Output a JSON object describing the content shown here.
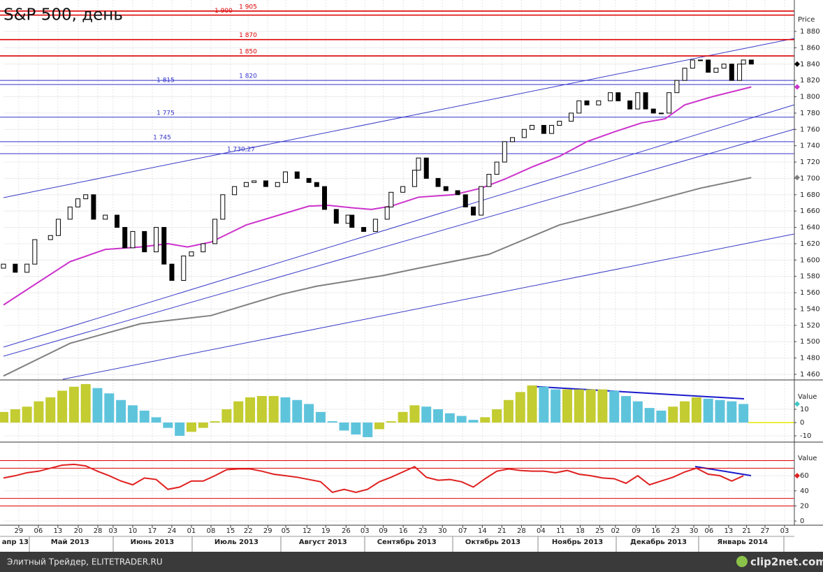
{
  "chart_data": [
    {
      "type": "candlestick",
      "title": "S&P 500, день",
      "y_axis_label": "Price",
      "xlim": [
        0,
        202
      ],
      "ylim": [
        1454,
        1918.5
      ],
      "grid": true,
      "x": [
        0,
        3,
        6,
        8,
        12,
        14,
        17,
        19,
        21,
        23,
        26,
        29,
        31,
        33,
        36,
        39,
        41,
        43,
        46,
        48,
        51,
        54,
        56,
        59,
        62,
        64,
        67,
        70,
        72,
        75,
        78,
        80,
        82,
        85,
        88,
        89,
        92,
        95,
        98,
        99,
        102,
        105,
        106,
        108,
        111,
        113,
        116,
        118,
        120,
        122,
        124,
        126,
        128,
        130,
        133,
        135,
        138,
        140,
        142,
        145,
        147,
        149,
        152,
        155,
        157,
        160,
        162,
        164,
        166,
        168,
        170,
        172,
        174,
        176,
        178,
        180,
        182,
        184,
        186,
        188,
        189,
        191
      ],
      "open": [
        1590,
        1595,
        1585,
        1595,
        1625,
        1630,
        1650,
        1665,
        1675,
        1680,
        1650,
        1655,
        1640,
        1615,
        1635,
        1610,
        1640,
        1595,
        1575,
        1605,
        1610,
        1620,
        1650,
        1680,
        1690,
        1695,
        1697,
        1690,
        1695,
        1708,
        1700,
        1695,
        1690,
        1662,
        1645,
        1655,
        1640,
        1635,
        1650,
        1665,
        1683,
        1690,
        1710,
        1725,
        1700,
        1690,
        1685,
        1680,
        1665,
        1655,
        1690,
        1705,
        1720,
        1745,
        1750,
        1760,
        1765,
        1755,
        1765,
        1770,
        1780,
        1795,
        1790,
        1795,
        1805,
        1795,
        1785,
        1805,
        1785,
        1780,
        1780,
        1805,
        1820,
        1835,
        1845,
        1845,
        1830,
        1835,
        1840,
        1820,
        1840,
        1845
      ],
      "close": [
        1595,
        1585,
        1595,
        1625,
        1630,
        1650,
        1665,
        1675,
        1680,
        1650,
        1655,
        1640,
        1615,
        1635,
        1610,
        1640,
        1595,
        1575,
        1605,
        1610,
        1620,
        1650,
        1680,
        1690,
        1695,
        1697,
        1690,
        1695,
        1708,
        1700,
        1695,
        1690,
        1662,
        1645,
        1655,
        1640,
        1635,
        1650,
        1665,
        1683,
        1690,
        1710,
        1725,
        1700,
        1690,
        1685,
        1680,
        1665,
        1655,
        1690,
        1705,
        1720,
        1745,
        1750,
        1760,
        1765,
        1755,
        1765,
        1770,
        1780,
        1795,
        1790,
        1795,
        1805,
        1795,
        1785,
        1805,
        1785,
        1780,
        1780,
        1805,
        1820,
        1835,
        1845,
        1845,
        1830,
        1835,
        1840,
        1820,
        1840,
        1845,
        1840
      ],
      "colors": {
        "up": "#ffffff",
        "down": "#000000",
        "outline": "#000000",
        "last": "#000000"
      },
      "lines": [
        {
          "color": "#cc33cc",
          "x": [
            0,
            8,
            17,
            26,
            35,
            42,
            47,
            53,
            62,
            71,
            78,
            83,
            89,
            94,
            99,
            106,
            115,
            122,
            128,
            135,
            142,
            149,
            156,
            163,
            169,
            174,
            181,
            191
          ],
          "values": [
            1545,
            1570,
            1598,
            1613,
            1616,
            1620,
            1616,
            1622,
            1643,
            1656,
            1666,
            1667,
            1664,
            1662,
            1666,
            1677,
            1680,
            1688,
            1699,
            1714,
            1727,
            1745,
            1757,
            1768,
            1773,
            1790,
            1800,
            1812
          ]
        },
        {
          "color": "#808080",
          "x": [
            0,
            17,
            35,
            53,
            71,
            80,
            97,
            106,
            124,
            142,
            160,
            178,
            191
          ],
          "values": [
            1458,
            1498,
            1522,
            1532,
            1558,
            1568,
            1581,
            1590,
            1607,
            1643,
            1665,
            1688,
            1701
          ]
        }
      ],
      "levels": [
        {
          "value": 1905,
          "label": "1 905",
          "color": "#dd0000"
        },
        {
          "value": 1900,
          "label": "1 900",
          "color": "#dd0000"
        },
        {
          "value": 1870,
          "label": "1 870",
          "color": "#dd0000"
        },
        {
          "value": 1850,
          "label": "1 850",
          "color": "#dd0000"
        },
        {
          "value": 1820,
          "label": "1 820",
          "color": "#3333cc"
        },
        {
          "value": 1815,
          "label": "1 815",
          "color": "#3333cc"
        },
        {
          "value": 1775,
          "label": "1 775",
          "color": "#3333cc"
        },
        {
          "value": 1745,
          "label": "1 745",
          "color": "#3333cc"
        },
        {
          "value": 1730.27,
          "label": "1 730,27",
          "color": "#3333cc"
        }
      ],
      "yticks": [
        {
          "value": 1460,
          "label": "1 460"
        },
        {
          "value": 1480,
          "label": "1 480"
        },
        {
          "value": 1500,
          "label": "1 500"
        },
        {
          "value": 1520,
          "label": "1 520"
        },
        {
          "value": 1540,
          "label": "1 540"
        },
        {
          "value": 1560,
          "label": "1 560"
        },
        {
          "value": 1580,
          "label": "1 580"
        },
        {
          "value": 1600,
          "label": "1 600"
        },
        {
          "value": 1620,
          "label": "1 620"
        },
        {
          "value": 1640,
          "label": "1 640"
        },
        {
          "value": 1660,
          "label": "1 660"
        },
        {
          "value": 1680,
          "label": "1 680"
        },
        {
          "value": 1700,
          "label": "1 700"
        },
        {
          "value": 1720,
          "label": "1 720"
        },
        {
          "value": 1740,
          "label": "1 740"
        },
        {
          "value": 1760,
          "label": "1 760"
        },
        {
          "value": 1780,
          "label": "1 780"
        },
        {
          "value": 1800,
          "label": "1 800"
        },
        {
          "value": 1820,
          "label": "1 820"
        },
        {
          "value": 1840,
          "label": "1 840"
        },
        {
          "value": 1860,
          "label": "1 860"
        },
        {
          "value": 1880,
          "label": "1 880"
        }
      ]
    },
    {
      "type": "histogram-bars",
      "y_axis_label": "Value",
      "xlim": [
        0,
        202
      ],
      "ylim": [
        -14.2,
        31.6
      ],
      "yticks": [
        -10,
        0,
        10
      ],
      "colors": {
        "up": "#c3cc30",
        "down": "#5ec4dc",
        "zero": "#e6e600",
        "last": "#40c8c8"
      },
      "x": [
        0,
        3,
        6,
        9,
        12,
        15,
        18,
        21,
        24,
        27,
        30,
        33,
        36,
        39,
        42,
        45,
        48,
        51,
        54,
        57,
        60,
        63,
        66,
        69,
        72,
        75,
        78,
        81,
        84,
        87,
        90,
        93,
        96,
        99,
        102,
        105,
        108,
        111,
        114,
        117,
        120,
        123,
        126,
        129,
        132,
        135,
        138,
        141,
        144,
        147,
        150,
        153,
        156,
        159,
        162,
        165,
        168,
        171,
        174,
        177,
        180,
        183,
        186,
        189
      ],
      "values": [
        8,
        10,
        12,
        16,
        19,
        24,
        27,
        29,
        26,
        22,
        17,
        13,
        9,
        4,
        -4,
        -10,
        -7,
        -4,
        1,
        10,
        16,
        19,
        20,
        20,
        19,
        17,
        14,
        8,
        1,
        -6,
        -9,
        -11,
        -5,
        1,
        8,
        13,
        12,
        10,
        7,
        5,
        2,
        4,
        10,
        17,
        23,
        28,
        27,
        25,
        25,
        25,
        25,
        25,
        24,
        20,
        16,
        11,
        9,
        12,
        16,
        19,
        18,
        17,
        16,
        14
      ]
    },
    {
      "type": "line",
      "y_axis_label": "Value",
      "xlim": [
        0,
        202
      ],
      "ylim": [
        -5.5,
        103.6
      ],
      "yticks": [
        0,
        20,
        40,
        60
      ],
      "color": "#e02020",
      "levels": [
        80,
        70,
        30,
        20
      ],
      "level_color": "#dd0000",
      "x": [
        0,
        3,
        6,
        9,
        12,
        15,
        18,
        21,
        24,
        27,
        30,
        33,
        36,
        39,
        42,
        45,
        48,
        51,
        54,
        57,
        60,
        63,
        66,
        69,
        72,
        75,
        78,
        81,
        84,
        87,
        90,
        93,
        96,
        99,
        102,
        105,
        108,
        111,
        114,
        117,
        120,
        123,
        126,
        129,
        132,
        135,
        138,
        141,
        144,
        147,
        150,
        153,
        156,
        159,
        162,
        165,
        168,
        171,
        174,
        177,
        180,
        183,
        186,
        189
      ],
      "values": [
        57,
        60,
        64,
        66,
        70,
        74,
        75,
        73,
        66,
        60,
        53,
        48,
        57,
        55,
        42,
        45,
        53,
        53,
        60,
        68,
        69,
        69,
        66,
        62,
        60,
        58,
        55,
        52,
        38,
        42,
        38,
        42,
        52,
        58,
        65,
        72,
        58,
        54,
        55,
        52,
        45,
        56,
        66,
        69,
        67,
        66,
        66,
        64,
        67,
        62,
        60,
        57,
        56,
        50,
        60,
        48,
        53,
        58,
        65,
        70,
        62,
        60,
        53,
        60
      ],
      "xticks": [
        {
          "value": 3.9,
          "label": "29"
        },
        {
          "value": 8.9,
          "label": "06"
        },
        {
          "value": 13.9,
          "label": "13"
        },
        {
          "value": 19.1,
          "label": "20"
        },
        {
          "value": 24.1,
          "label": "28"
        },
        {
          "value": 28,
          "label": "03"
        },
        {
          "value": 33,
          "label": "10"
        },
        {
          "value": 38,
          "label": "17"
        },
        {
          "value": 43,
          "label": "24"
        },
        {
          "value": 48,
          "label": "01"
        },
        {
          "value": 53,
          "label": "08"
        },
        {
          "value": 58,
          "label": "15"
        },
        {
          "value": 62.5,
          "label": "22"
        },
        {
          "value": 67.5,
          "label": "29"
        },
        {
          "value": 72.1,
          "label": "05"
        },
        {
          "value": 77.5,
          "label": "12"
        },
        {
          "value": 82.3,
          "label": "19"
        },
        {
          "value": 87.5,
          "label": "26"
        },
        {
          "value": 92.3,
          "label": "03"
        },
        {
          "value": 97,
          "label": "09"
        },
        {
          "value": 102.1,
          "label": "16"
        },
        {
          "value": 107.1,
          "label": "23"
        },
        {
          "value": 112.1,
          "label": "30"
        },
        {
          "value": 117.3,
          "label": "07"
        },
        {
          "value": 122.3,
          "label": "14"
        },
        {
          "value": 127.3,
          "label": "21"
        },
        {
          "value": 132.3,
          "label": "28"
        },
        {
          "value": 137.3,
          "label": "04"
        },
        {
          "value": 142.3,
          "label": "11"
        },
        {
          "value": 147.3,
          "label": "18"
        },
        {
          "value": 152.3,
          "label": "25"
        },
        {
          "value": 156.3,
          "label": "02"
        },
        {
          "value": 161.6,
          "label": "09"
        },
        {
          "value": 166.6,
          "label": "16"
        },
        {
          "value": 171.6,
          "label": "23"
        },
        {
          "value": 176.3,
          "label": "30"
        },
        {
          "value": 180.2,
          "label": "06"
        },
        {
          "value": 185.2,
          "label": "13"
        },
        {
          "value": 189.8,
          "label": "21"
        },
        {
          "value": 194.5,
          "label": "27"
        },
        {
          "value": 199.5,
          "label": "03"
        }
      ],
      "month_ticks": [
        {
          "value": 3,
          "label": "апр 13"
        },
        {
          "value": 17,
          "label": "Май 2013"
        },
        {
          "value": 38,
          "label": "Июнь 2013"
        },
        {
          "value": 59.5,
          "label": "Июль 2013"
        },
        {
          "value": 81.6,
          "label": "Август 2013"
        },
        {
          "value": 103,
          "label": "Сентябрь 2013"
        },
        {
          "value": 125,
          "label": "Октябрь 2013"
        },
        {
          "value": 146.6,
          "label": "Ноябрь 2013"
        },
        {
          "value": 167.3,
          "label": "Декабрь 2013"
        },
        {
          "value": 188.75,
          "label": "Январь 2014"
        }
      ]
    }
  ],
  "footer": {
    "left": "Элитный Трейдер, ELITETRADER.RU",
    "right": "clip2net.com"
  }
}
